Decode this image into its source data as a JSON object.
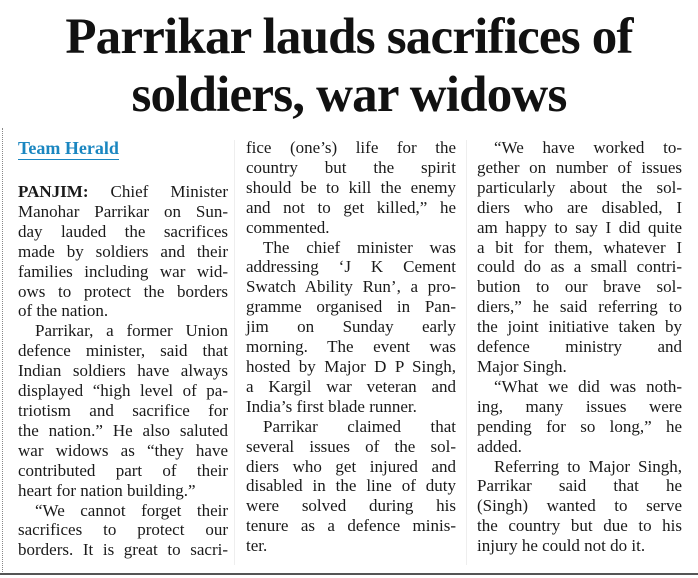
{
  "headline": {
    "line1": "Parrikar lauds sacrifices of",
    "line2": "soldiers, war widows"
  },
  "byline": "Team Herald",
  "columns": [
    [
      {
        "indent": false,
        "lead": "PANJIM:",
        "lines": [
          " Chief Minister",
          "Manohar Parrikar on Sun-",
          "day lauded the sacrifices",
          "made by soldiers and their",
          "families including war wid-",
          "ows to protect the borders",
          "of the nation."
        ]
      },
      {
        "indent": true,
        "lines": [
          "Parrikar, a former Union",
          "defence minister, said that",
          "Indian soldiers have always",
          "displayed “high level of pa-",
          "triotism and sacrifice for",
          "the nation.” He also saluted",
          "war widows as “they have",
          "contributed part of their",
          "heart for nation building.”"
        ]
      },
      {
        "indent": true,
        "lines": [
          "“We cannot forget their",
          "sacrifices to protect our",
          "borders. It is great to sacri-"
        ],
        "continues": true
      }
    ],
    [
      {
        "indent": false,
        "lines": [
          "fice (one’s) life for the",
          "country but the spirit",
          "should be to kill the enemy",
          "and not to get killed,” he",
          "commented."
        ]
      },
      {
        "indent": true,
        "lines": [
          "The chief minister was",
          "addressing ‘J K Cement",
          "Swatch Ability Run’, a pro-",
          "gramme organised in Pan-",
          "jim on Sunday early",
          "morning. The event was",
          "hosted by Major D P Singh,",
          "a Kargil war veteran and",
          "India’s first blade runner."
        ]
      },
      {
        "indent": true,
        "lines": [
          "Parrikar claimed that",
          "several issues of the sol-",
          "diers who get injured and",
          "disabled in the line of duty",
          "were solved during his",
          "tenure as a defence minis-",
          "ter."
        ]
      }
    ],
    [
      {
        "indent": true,
        "lines": [
          "“We have worked to-",
          "gether on number of issues",
          "particularly about the sol-",
          "diers who are disabled, I",
          "am happy to say I did quite",
          "a bit for them, whatever I",
          "could do as a small contri-",
          "bution to our brave sol-",
          "diers,” he said referring to",
          "the joint initiative taken by",
          "defence ministry and",
          "Major Singh."
        ]
      },
      {
        "indent": true,
        "lines": [
          "“What we did was noth-",
          "ing, many issues were",
          "pending for so long,” he",
          "added."
        ]
      },
      {
        "indent": true,
        "lines": [
          "Referring to Major Singh,",
          "Parrikar said that he",
          "(Singh) wanted to serve",
          "the country but due to his",
          "injury he could not do it."
        ]
      }
    ]
  ],
  "colors": {
    "byline": "#1a86c0",
    "text": "#1a1a1a"
  }
}
